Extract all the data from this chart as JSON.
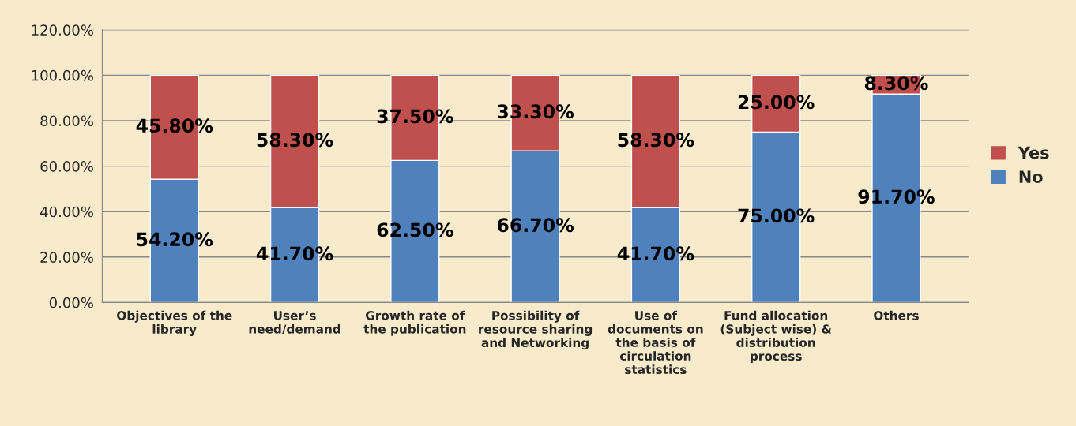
{
  "chart_data": {
    "type": "bar",
    "stacked": true,
    "categories": [
      "Objectives of the\nlibrary",
      "User’s\nneed/demand",
      "Growth rate of\nthe publication",
      "Possibility of\nresource sharing\nand Networking",
      "Use of\ndocuments on\nthe basis of\ncirculation\nstatistics",
      "Fund allocation\n(Subject wise) &\ndistribution\nprocess",
      "Others"
    ],
    "series": [
      {
        "name": "No",
        "color": "#4f81bd",
        "values": [
          54.2,
          41.7,
          62.5,
          66.7,
          41.7,
          75.0,
          91.7
        ],
        "value_labels": [
          "54.20%",
          "41.70%",
          "62.50%",
          "66.70%",
          "41.70%",
          "75.00%",
          "91.70%"
        ]
      },
      {
        "name": "Yes",
        "color": "#c0504d",
        "values": [
          45.8,
          58.3,
          37.5,
          33.3,
          58.3,
          25.0,
          8.3
        ],
        "value_labels": [
          "45.80%",
          "58.30%",
          "37.50%",
          "33.30%",
          "58.30%",
          "25.00%",
          "8.30%"
        ]
      }
    ],
    "ylim": [
      0,
      120
    ],
    "yticks": [
      {
        "value": 0,
        "label": "0.00%"
      },
      {
        "value": 20,
        "label": "20.00%"
      },
      {
        "value": 40,
        "label": "40.00%"
      },
      {
        "value": 60,
        "label": "60.00%"
      },
      {
        "value": 80,
        "label": "80.00%"
      },
      {
        "value": 100,
        "label": "100.00%"
      },
      {
        "value": 120,
        "label": "120.00%"
      }
    ],
    "grid": "y",
    "legend": "right"
  }
}
